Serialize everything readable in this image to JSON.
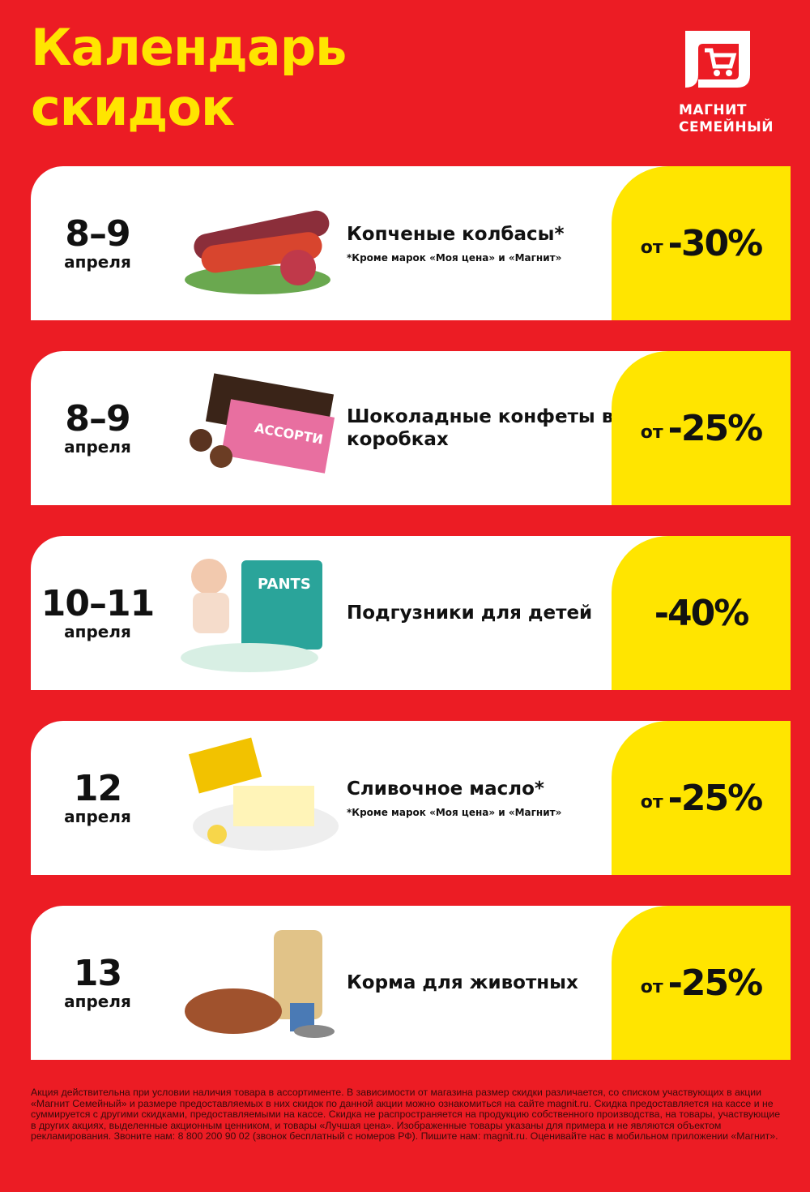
{
  "header": {
    "title_line1": "Календарь",
    "title_line2": "скидок"
  },
  "logo": {
    "line1": "МАГНИТ",
    "line2": "СЕМЕЙНЫЙ",
    "icon": "cart-icon"
  },
  "colors": {
    "background": "#ec1c24",
    "accent_yellow": "#ffe500",
    "card": "#ffffff"
  },
  "items": [
    {
      "date": "8–9",
      "month": "апреля",
      "name": "Копченые колбасы*",
      "note": "*Кроме марок «Моя цена» и «Магнит»",
      "prefix": "от",
      "discount": "-30%",
      "image": "sausages-image"
    },
    {
      "date": "8–9",
      "month": "апреля",
      "name": "Шоколадные конфеты в коробках",
      "note": "",
      "prefix": "от",
      "discount": "-25%",
      "image": "chocolate-box-image"
    },
    {
      "date": "10–11",
      "month": "апреля",
      "name": "Подгузники для детей",
      "note": "",
      "prefix": "",
      "discount": "-40%",
      "image": "diapers-image"
    },
    {
      "date": "12",
      "month": "апреля",
      "name": "Сливочное масло*",
      "note": "*Кроме марок «Моя цена» и «Магнит»",
      "prefix": "от",
      "discount": "-25%",
      "image": "butter-image"
    },
    {
      "date": "13",
      "month": "апреля",
      "name": "Корма для животных",
      "note": "",
      "prefix": "от",
      "discount": "-25%",
      "image": "pet-food-image"
    }
  ],
  "footer": "Акция действительна при условии наличия товара в ассортименте. В зависимости от магазина размер скидки различается, со списком участвующих в акции «Магнит Семейный» и размере предоставляемых в них скидок по данной акции можно ознакомиться на сайте magnit.ru. Скидка предоставляется на кассе и не суммируется с другими скидками, предоставляемыми на кассе. Скидка не распространяется на продукцию собственного производства, на товары, участвующие в других акциях, выделенные акционным ценником, и товары «Лучшая цена». Изображенные товары указаны для примера и не являются объектом рекламирования. Звоните нам: 8 800 200 90 02 (звонок бесплатный с номеров РФ). Пишите нам: magnit.ru. Оценивайте нас в мобильном приложении «Магнит»."
}
